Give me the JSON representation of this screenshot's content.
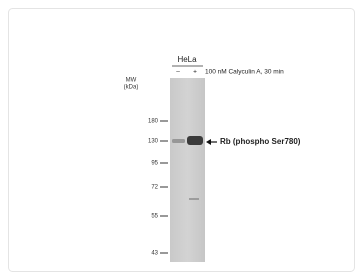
{
  "figure": {
    "cell_line": "HeLa",
    "lanes": [
      "–",
      "+"
    ],
    "treatment": "100 nM Calyculin A, 30 min",
    "mw_label": "MW",
    "mw_unit": "(kDa)",
    "markers": [
      "180",
      "130",
      "95",
      "72",
      "55",
      "43"
    ],
    "band_label": "Rb (phospho Ser780)"
  }
}
